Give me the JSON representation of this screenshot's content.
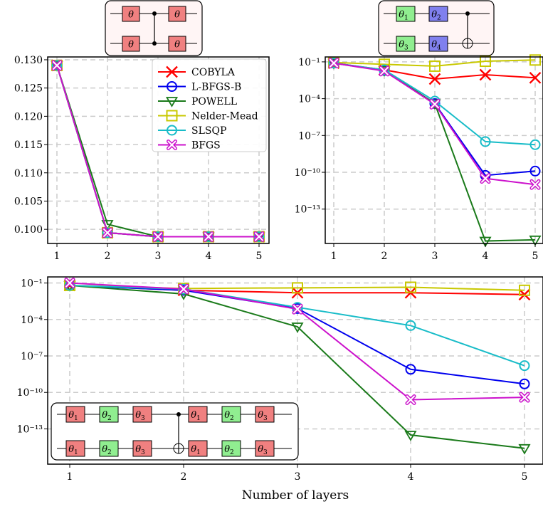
{
  "chart_data": [
    {
      "type": "line",
      "panel": "top-left",
      "x": [
        1,
        2,
        3,
        4,
        5
      ],
      "yscale": "linear",
      "ylim": [
        0.0975,
        0.1305
      ],
      "yticks": [
        0.1,
        0.105,
        0.11,
        0.115,
        0.12,
        0.125,
        0.13
      ],
      "ytick_labels": [
        "0.100",
        "0.105",
        "0.110",
        "0.115",
        "0.120",
        "0.125",
        "0.130"
      ],
      "xticks": [
        "1",
        "2",
        "3",
        "4",
        "5"
      ],
      "grid": true,
      "legend_position": "upper-right",
      "series": [
        {
          "name": "COBYLA",
          "values": [
            0.129,
            0.0994,
            0.0987,
            0.0987,
            0.0987
          ]
        },
        {
          "name": "L-BFGS-B",
          "values": [
            0.129,
            0.0994,
            0.0987,
            0.0987,
            0.0987
          ]
        },
        {
          "name": "POWELL",
          "values": [
            0.129,
            0.1009,
            0.0987,
            0.0987,
            0.0987
          ]
        },
        {
          "name": "Nelder-Mead",
          "values": [
            0.129,
            0.0994,
            0.0987,
            0.0987,
            0.0987
          ]
        },
        {
          "name": "SLSQP",
          "values": [
            0.129,
            0.0994,
            0.0987,
            0.0987,
            0.0987
          ]
        },
        {
          "name": "BFGS",
          "values": [
            0.129,
            0.0994,
            0.0987,
            0.0987,
            0.0987
          ]
        }
      ],
      "circuit": {
        "gates_top": [
          "θ",
          "θ"
        ],
        "gates_bottom": [
          "θ",
          "θ"
        ]
      }
    },
    {
      "type": "line",
      "panel": "top-right",
      "x": [
        1,
        2,
        3,
        4,
        5
      ],
      "yscale": "log",
      "ylim_log10": [
        -15.8,
        -0.6
      ],
      "yticks_log10": [
        -1,
        -4,
        -7,
        -10,
        -13
      ],
      "ytick_labels": [
        "10⁻¹",
        "10⁻⁴",
        "10⁻⁷",
        "10⁻¹⁰",
        "10⁻¹³"
      ],
      "xticks": [
        "1",
        "2",
        "3",
        "4",
        "5"
      ],
      "grid": true,
      "series": [
        {
          "name": "COBYLA",
          "log10_values": [
            -1.1,
            -1.65,
            -2.4,
            -2.05,
            -2.3
          ]
        },
        {
          "name": "L-BFGS-B",
          "log10_values": [
            -1.1,
            -1.7,
            -4.4,
            -10.25,
            -9.9
          ]
        },
        {
          "name": "POWELL",
          "log10_values": [
            -1.1,
            -1.7,
            -4.4,
            -15.6,
            -15.5
          ]
        },
        {
          "name": "Nelder-Mead",
          "log10_values": [
            -1.05,
            -1.2,
            -1.35,
            -0.95,
            -0.85
          ]
        },
        {
          "name": "SLSQP",
          "log10_values": [
            -1.1,
            -1.65,
            -4.2,
            -7.5,
            -7.75
          ]
        },
        {
          "name": "BFGS",
          "log10_values": [
            -1.1,
            -1.75,
            -4.45,
            -10.5,
            -11.0
          ]
        }
      ],
      "circuit": {
        "gates_top": [
          "θ1",
          "θ2"
        ],
        "gates_bottom": [
          "θ3",
          "θ4"
        ]
      }
    },
    {
      "type": "line",
      "panel": "bottom",
      "x": [
        1,
        2,
        3,
        4,
        5
      ],
      "yscale": "log",
      "ylim_log10": [
        -15.9,
        -0.5
      ],
      "yticks_log10": [
        -1,
        -4,
        -7,
        -10,
        -13
      ],
      "ytick_labels": [
        "10⁻¹",
        "10⁻⁴",
        "10⁻⁷",
        "10⁻¹⁰",
        "10⁻¹³"
      ],
      "xticks": [
        "1",
        "2",
        "3",
        "4",
        "5"
      ],
      "xlabel": "Number of layers",
      "grid": true,
      "series": [
        {
          "name": "COBYLA",
          "log10_values": [
            -1.2,
            -1.6,
            -1.8,
            -1.8,
            -1.95
          ]
        },
        {
          "name": "L-BFGS-B",
          "log10_values": [
            -1.2,
            -1.6,
            -3.1,
            -8.1,
            -9.3
          ]
        },
        {
          "name": "POWELL",
          "log10_values": [
            -1.2,
            -1.9,
            -4.6,
            -13.5,
            -14.6
          ]
        },
        {
          "name": "Nelder-Mead",
          "log10_values": [
            -1.2,
            -1.45,
            -1.4,
            -1.35,
            -1.6
          ]
        },
        {
          "name": "SLSQP",
          "log10_values": [
            -1.2,
            -1.5,
            -3.0,
            -4.5,
            -7.8
          ]
        },
        {
          "name": "BFGS",
          "log10_values": [
            -1.0,
            -1.5,
            -3.15,
            -10.6,
            -10.4
          ]
        }
      ],
      "circuit": {
        "gates_top": [
          "θ1",
          "θ2",
          "θ3",
          "θ1",
          "θ2",
          "θ3"
        ],
        "gates_bottom": [
          "θ1",
          "θ2",
          "θ3",
          "θ1",
          "θ2",
          "θ3"
        ]
      }
    }
  ],
  "styles": {
    "COBYLA": {
      "color": "#ff0000",
      "marker": "x"
    },
    "L-BFGS-B": {
      "color": "#0000ee",
      "marker": "circle"
    },
    "POWELL": {
      "color": "#1a7a1a",
      "marker": "triangle-down"
    },
    "Nelder-Mead": {
      "color": "#c8c800",
      "marker": "square"
    },
    "SLSQP": {
      "color": "#18bcc8",
      "marker": "circle"
    },
    "BFGS": {
      "color": "#cc11cc",
      "marker": "x-circle"
    }
  },
  "gate_colors": {
    "red": "#f08080",
    "green": "#90ee90",
    "blue": "#8080ee"
  }
}
